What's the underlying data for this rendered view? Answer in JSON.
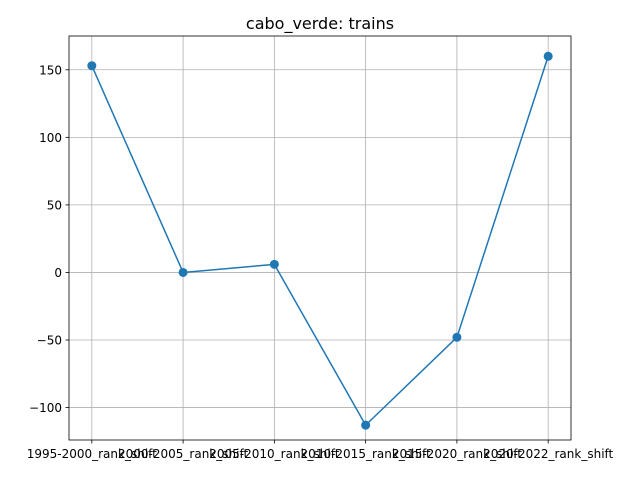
{
  "chart_data": {
    "type": "line",
    "title": "cabo_verde: trains",
    "xlabel": "",
    "ylabel": "",
    "categories": [
      "1995-2000_rank_shift",
      "2000-2005_rank_shift",
      "2005-2010_rank_shift",
      "2010-2015_rank_shift",
      "2015-2020_rank_shift",
      "2020-2022_rank_shift"
    ],
    "series": [
      {
        "values": [
          153,
          0,
          6,
          -113,
          -48,
          160
        ],
        "color": "#1f77b4",
        "marker": "circle"
      }
    ],
    "ylim": [
      -124,
      175
    ],
    "yticks": [
      -100,
      -50,
      0,
      50,
      100,
      150
    ],
    "grid": true,
    "legend": "none"
  }
}
